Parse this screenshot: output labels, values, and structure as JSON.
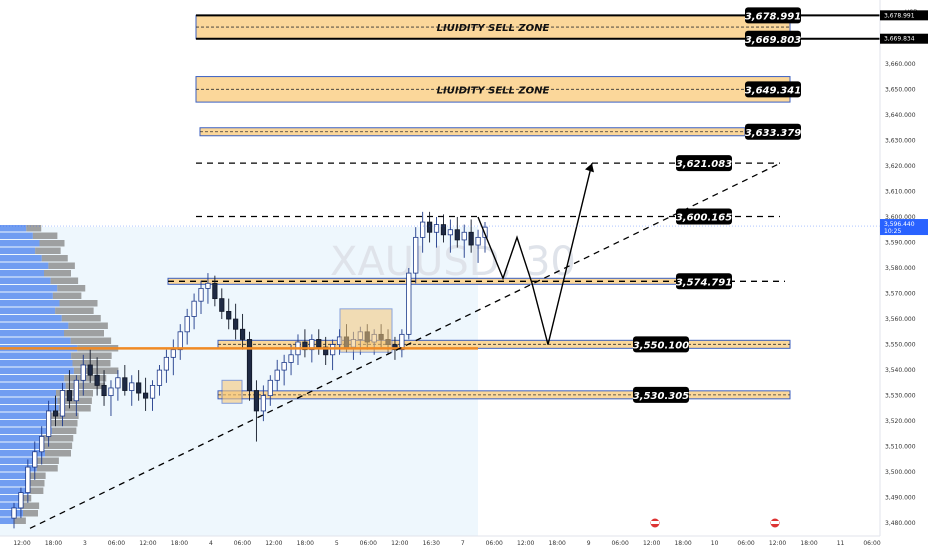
{
  "chart_data": {
    "type": "candlestick",
    "symbol_watermark": "XAUUSD, 30",
    "currency": "USD",
    "ylim": [
      3475,
      3685
    ],
    "y_ticks": [
      3480.0,
      3490.0,
      3500.0,
      3510.0,
      3520.0,
      3530.0,
      3540.0,
      3550.0,
      3560.0,
      3570.0,
      3580.0,
      3590.0,
      3600.0,
      3610.0,
      3620.0,
      3630.0,
      3640.0,
      3650.0,
      3660.0
    ],
    "y_tick_labels": [
      "3,480.000",
      "3,490.000",
      "3,500.000",
      "3,510.000",
      "3,520.000",
      "3,530.000",
      "3,540.000",
      "3,550.000",
      "3,560.000",
      "3,570.000",
      "3,580.000",
      "3,590.000",
      "3,600.000",
      "3,610.000",
      "3,620.000",
      "3,630.000",
      "3,640.000",
      "3,650.000",
      "3,660.000"
    ],
    "x_tick_labels": [
      "12:00",
      "18:00",
      "3",
      "06:00",
      "12:00",
      "18:00",
      "4",
      "06:00",
      "12:00",
      "18:00",
      "5",
      "06:00",
      "12:00",
      "16:30",
      "7",
      "06:00",
      "12:00",
      "18:00",
      "9",
      "06:00",
      "12:00",
      "18:00",
      "10",
      "06:00",
      "12:00",
      "18:00",
      "11",
      "06:00"
    ],
    "axis_price_labels": [
      {
        "value": 3678.991,
        "label": "3,678.991"
      },
      {
        "value": 3669.834,
        "label": "3,669.834"
      }
    ],
    "current_price": {
      "value": 3596.44,
      "label": "3,596.440",
      "countdown": "10:25"
    },
    "zones": [
      {
        "label": "LIUIDITY SELL ZONE",
        "top": 3678.991,
        "bottom": 3669.803,
        "top_label": "3,678.991",
        "bottom_label": "3,669.803"
      },
      {
        "label": "LIUIDITY SELL ZONE",
        "top": 3655,
        "bottom": 3645,
        "level_label": "3,649.341"
      }
    ],
    "levels": [
      {
        "value": 3633.379,
        "label": "3,633.379",
        "style": "band"
      },
      {
        "value": 3621.083,
        "label": "3,621.083",
        "style": "dashed"
      },
      {
        "value": 3600.165,
        "label": "3,600.165",
        "style": "dashed"
      },
      {
        "value": 3574.791,
        "label": "3,574.791",
        "style": "band-dashed"
      },
      {
        "value": 3550.1,
        "label": "3,550.100",
        "style": "band"
      },
      {
        "value": 3530.305,
        "label": "3,530.305",
        "style": "band"
      }
    ],
    "projection_path": [
      3600,
      3576,
      3592,
      3574,
      3550,
      3621
    ],
    "trendline": {
      "from": 3478,
      "to": 3621
    },
    "candles": [
      [
        3482,
        3488,
        3478,
        3486
      ],
      [
        3486,
        3494,
        3482,
        3492
      ],
      [
        3492,
        3505,
        3488,
        3502
      ],
      [
        3502,
        3512,
        3497,
        3508
      ],
      [
        3508,
        3518,
        3503,
        3514
      ],
      [
        3514,
        3528,
        3510,
        3524
      ],
      [
        3524,
        3530,
        3518,
        3522
      ],
      [
        3522,
        3535,
        3518,
        3532
      ],
      [
        3532,
        3540,
        3525,
        3528
      ],
      [
        3528,
        3538,
        3522,
        3536
      ],
      [
        3536,
        3546,
        3530,
        3542
      ],
      [
        3542,
        3548,
        3535,
        3538
      ],
      [
        3538,
        3545,
        3530,
        3534
      ],
      [
        3534,
        3540,
        3526,
        3530
      ],
      [
        3530,
        3536,
        3522,
        3533
      ],
      [
        3533,
        3540,
        3528,
        3537
      ],
      [
        3537,
        3542,
        3530,
        3532
      ],
      [
        3532,
        3538,
        3526,
        3535
      ],
      [
        3535,
        3540,
        3528,
        3531
      ],
      [
        3531,
        3537,
        3524,
        3529
      ],
      [
        3529,
        3536,
        3524,
        3534
      ],
      [
        3534,
        3542,
        3530,
        3540
      ],
      [
        3540,
        3548,
        3535,
        3545
      ],
      [
        3545,
        3552,
        3538,
        3548
      ],
      [
        3548,
        3558,
        3544,
        3555
      ],
      [
        3555,
        3564,
        3550,
        3561
      ],
      [
        3561,
        3570,
        3556,
        3567
      ],
      [
        3567,
        3575,
        3562,
        3572
      ],
      [
        3572,
        3578,
        3566,
        3574
      ],
      [
        3574,
        3577,
        3565,
        3568
      ],
      [
        3568,
        3572,
        3560,
        3563
      ],
      [
        3563,
        3568,
        3556,
        3560
      ],
      [
        3560,
        3566,
        3552,
        3556
      ],
      [
        3556,
        3562,
        3548,
        3552
      ],
      [
        3552,
        3555,
        3528,
        3532
      ],
      [
        3532,
        3536,
        3512,
        3524
      ],
      [
        3524,
        3534,
        3520,
        3530
      ],
      [
        3530,
        3538,
        3526,
        3536
      ],
      [
        3536,
        3544,
        3532,
        3540
      ],
      [
        3540,
        3546,
        3534,
        3543
      ],
      [
        3543,
        3550,
        3538,
        3546
      ],
      [
        3546,
        3554,
        3542,
        3551
      ],
      [
        3551,
        3556,
        3545,
        3548
      ],
      [
        3548,
        3554,
        3543,
        3552
      ],
      [
        3552,
        3556,
        3546,
        3549
      ],
      [
        3549,
        3553,
        3542,
        3546
      ],
      [
        3546,
        3552,
        3540,
        3550
      ],
      [
        3550,
        3556,
        3546,
        3553
      ],
      [
        3553,
        3558,
        3547,
        3549
      ],
      [
        3549,
        3555,
        3544,
        3552
      ],
      [
        3552,
        3557,
        3546,
        3555
      ],
      [
        3555,
        3558,
        3548,
        3551
      ],
      [
        3551,
        3556,
        3546,
        3554
      ],
      [
        3554,
        3558,
        3549,
        3552
      ],
      [
        3552,
        3556,
        3546,
        3550
      ],
      [
        3550,
        3553,
        3544,
        3548
      ],
      [
        3548,
        3556,
        3545,
        3554
      ],
      [
        3554,
        3580,
        3552,
        3578
      ],
      [
        3578,
        3596,
        3574,
        3592
      ],
      [
        3592,
        3602,
        3586,
        3598
      ],
      [
        3598,
        3602,
        3590,
        3594
      ],
      [
        3594,
        3600,
        3588,
        3597
      ],
      [
        3597,
        3601,
        3590,
        3593
      ],
      [
        3593,
        3599,
        3586,
        3595
      ],
      [
        3595,
        3600,
        3588,
        3591
      ],
      [
        3591,
        3597,
        3584,
        3594
      ],
      [
        3594,
        3599,
        3586,
        3589
      ],
      [
        3589,
        3595,
        3582,
        3592
      ],
      [
        3592,
        3598,
        3586,
        3596
      ]
    ]
  }
}
